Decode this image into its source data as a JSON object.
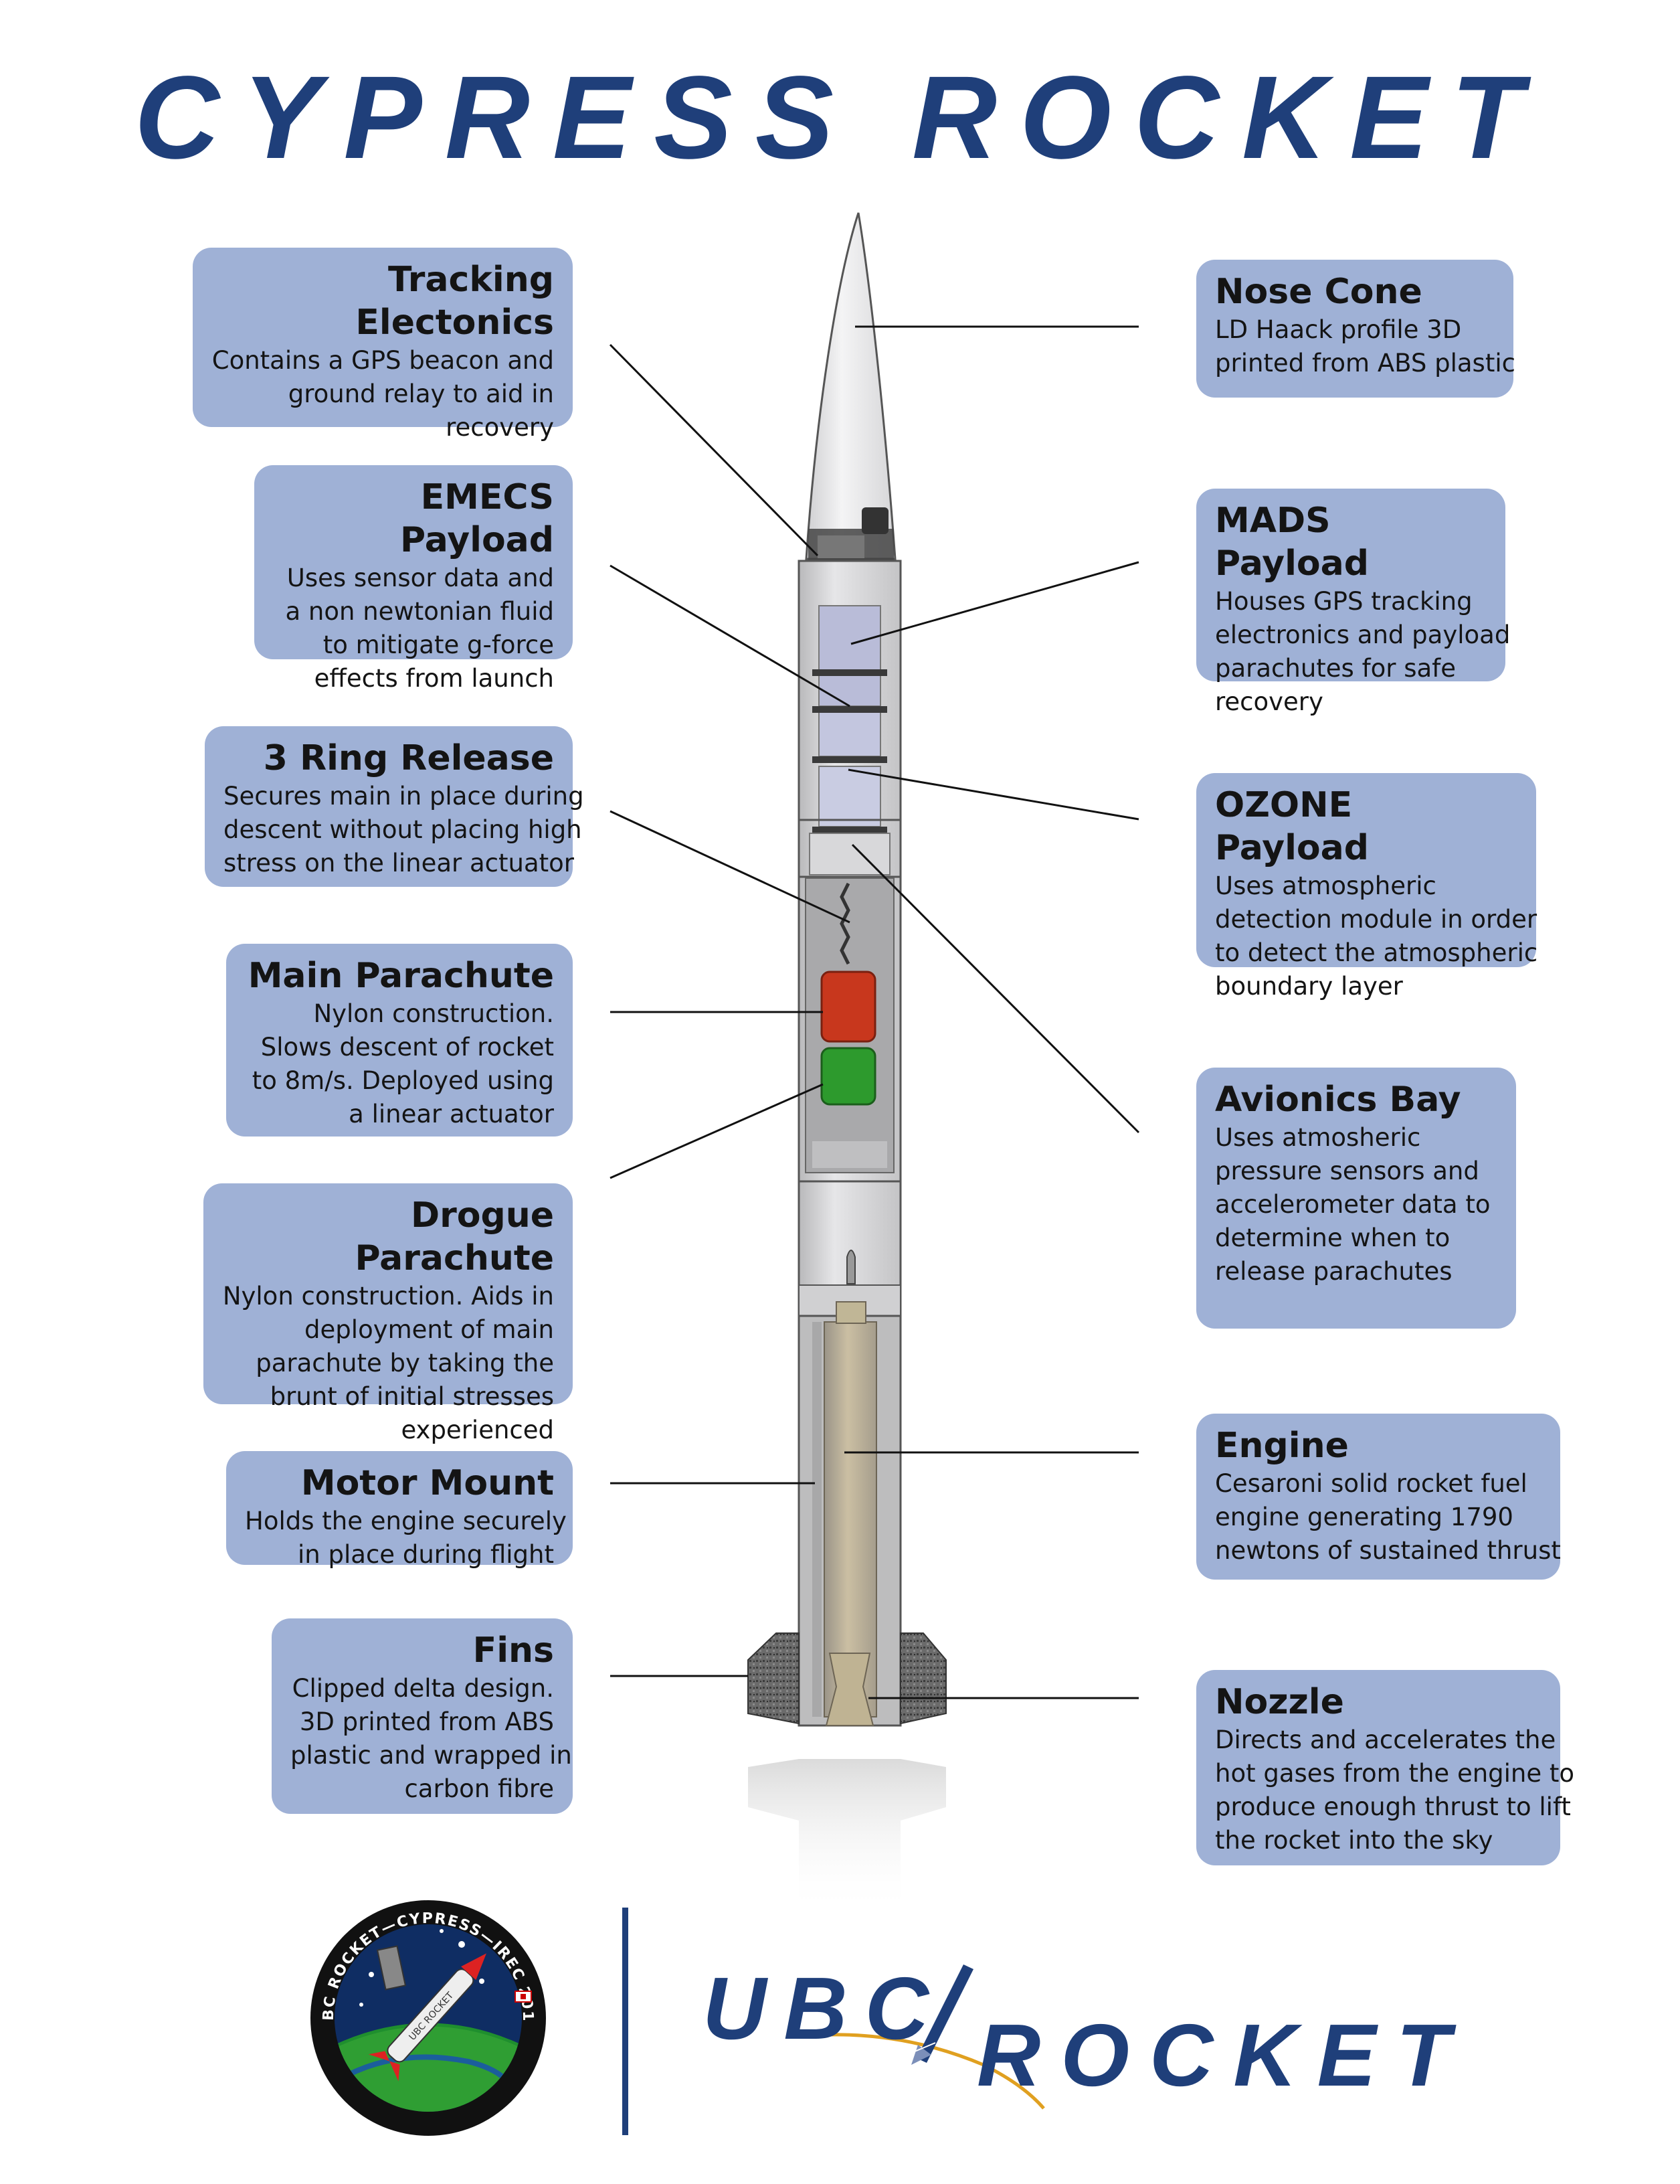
{
  "title": "CYPRESS ROCKET",
  "callouts_left": [
    {
      "id": "tracking-electronics",
      "title": "Tracking Electonics",
      "lines": [
        "Contains a GPS beacon and",
        "ground relay to aid in",
        "recovery"
      ]
    },
    {
      "id": "emecs-payload",
      "title": "EMECS Payload",
      "lines": [
        "Uses sensor data and",
        "a non newtonian fluid",
        "to mitigate g-force",
        "effects from launch"
      ]
    },
    {
      "id": "3-ring-release",
      "title": "3 Ring Release",
      "lines": [
        "Secures main in place during",
        "descent without placing high",
        "stress on the linear actuator"
      ]
    },
    {
      "id": "main-parachute",
      "title": "Main Parachute",
      "lines": [
        "Nylon construction.",
        "Slows descent of rocket",
        "to 8m/s. Deployed using",
        "a linear actuator"
      ]
    },
    {
      "id": "drogue-parachute",
      "title": "Drogue Parachute",
      "lines": [
        "Nylon construction. Aids in",
        "deployment of main",
        "parachute by taking the",
        "brunt of initial stresses",
        "experienced"
      ]
    },
    {
      "id": "motor-mount",
      "title": "Motor Mount",
      "lines": [
        "Holds the engine securely",
        "in place during flight"
      ]
    },
    {
      "id": "fins",
      "title": "Fins",
      "lines": [
        "Clipped delta design.",
        "3D printed from ABS",
        "plastic and wrapped in",
        "carbon fibre"
      ]
    }
  ],
  "callouts_right": [
    {
      "id": "nose-cone",
      "title": "Nose Cone",
      "lines": [
        "LD Haack profile 3D",
        "printed from ABS plastic"
      ]
    },
    {
      "id": "mads-payload",
      "title": "MADS Payload",
      "lines": [
        "Houses GPS tracking",
        "electronics and payload",
        "parachutes for safe",
        "recovery"
      ]
    },
    {
      "id": "ozone-payload",
      "title": "OZONE Payload",
      "lines": [
        "Uses atmospheric",
        "detection module in order",
        "to detect the atmospheric",
        "boundary layer"
      ]
    },
    {
      "id": "avionics-bay",
      "title": "Avionics Bay",
      "lines": [
        "Uses atmosheric",
        "pressure sensors and",
        "accelerometer data to",
        "determine when to",
        "release parachutes"
      ]
    },
    {
      "id": "engine",
      "title": "Engine",
      "lines": [
        "Cesaroni solid rocket fuel",
        "engine generating 1790",
        "newtons of sustained thrust"
      ]
    },
    {
      "id": "nozzle",
      "title": "Nozzle",
      "lines": [
        "Directs and accelerates the",
        "hot gases from the engine to",
        "produce enough thrust to lift",
        "the rocket into the sky"
      ]
    }
  ],
  "badge": {
    "ring_text": "UBC ROCKET—CYPRESS—IREC 2017",
    "rocket_text": "UBC ROCKET"
  },
  "logo": {
    "word1": "UBC",
    "word2": "ROCKET"
  },
  "colors": {
    "title_blue": "#1f3f7a",
    "callout_fill": "#9fb1d6",
    "main_chute": "#c8371d",
    "drogue_chute": "#2d9a2d"
  }
}
